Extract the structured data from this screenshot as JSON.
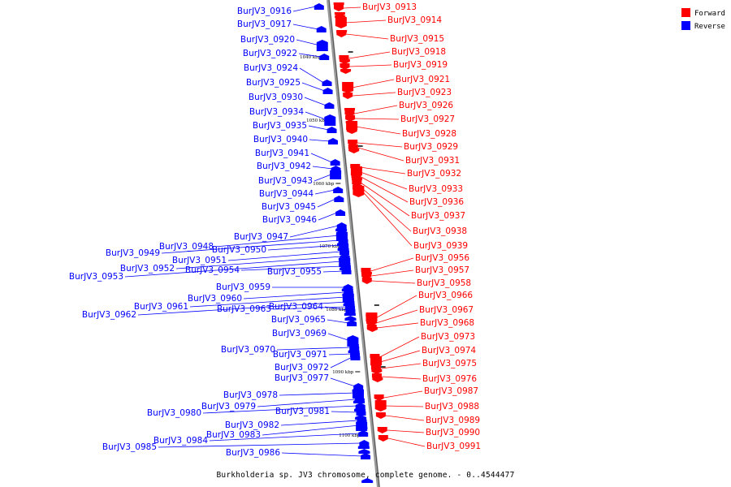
{
  "caption": "Burkholderia sp. JV3 chromosome, complete genome. - 0..4544477",
  "legend": [
    {
      "label": "Forward",
      "color": "#ff0000"
    },
    {
      "label": "Reverse",
      "color": "#0000ff"
    }
  ],
  "colors": {
    "forward": "#ff0000",
    "reverse": "#0000ff",
    "axis": "#999999"
  },
  "scale_marks": [
    "1040 kbp",
    "1050 kbp",
    "1060 kbp",
    "1070 kbp",
    "1080 kbp",
    "1090 kbp",
    "1100 kbp"
  ],
  "reverse_genes": [
    "BurJV3_0916",
    "BurJV3_0917",
    "BurJV3_0920",
    "BurJV3_0922",
    "BurJV3_0924",
    "BurJV3_0925",
    "BurJV3_0930",
    "BurJV3_0934",
    "BurJV3_0935",
    "BurJV3_0940",
    "BurJV3_0941",
    "BurJV3_0942",
    "BurJV3_0943",
    "BurJV3_0944",
    "BurJV3_0945",
    "BurJV3_0946",
    "BurJV3_0947",
    "BurJV3_0948",
    "BurJV3_0949",
    "BurJV3_0950",
    "BurJV3_0951",
    "BurJV3_0952",
    "BurJV3_0953",
    "BurJV3_0954",
    "BurJV3_0955",
    "BurJV3_0959",
    "BurJV3_0960",
    "BurJV3_0961",
    "BurJV3_0962",
    "BurJV3_0963",
    "BurJV3_0964",
    "BurJV3_0965",
    "BurJV3_0969",
    "BurJV3_0970",
    "BurJV3_0971",
    "BurJV3_0972",
    "BurJV3_0977",
    "BurJV3_0978",
    "BurJV3_0979",
    "BurJV3_0980",
    "BurJV3_0981",
    "BurJV3_0982",
    "BurJV3_0983",
    "BurJV3_0984",
    "BurJV3_0985",
    "BurJV3_0986"
  ],
  "forward_genes": [
    "BurJV3_0913",
    "BurJV3_0914",
    "BurJV3_0915",
    "BurJV3_0918",
    "BurJV3_0919",
    "BurJV3_0921",
    "BurJV3_0923",
    "BurJV3_0926",
    "BurJV3_0927",
    "BurJV3_0928",
    "BurJV3_0929",
    "BurJV3_0931",
    "BurJV3_0932",
    "BurJV3_0933",
    "BurJV3_0936",
    "BurJV3_0937",
    "BurJV3_0938",
    "BurJV3_0939",
    "BurJV3_0956",
    "BurJV3_0957",
    "BurJV3_0958",
    "BurJV3_0966",
    "BurJV3_0967",
    "BurJV3_0968",
    "BurJV3_0973",
    "BurJV3_0974",
    "BurJV3_0975",
    "BurJV3_0976",
    "BurJV3_0987",
    "BurJV3_0988",
    "BurJV3_0989",
    "BurJV3_0990",
    "BurJV3_0991"
  ]
}
